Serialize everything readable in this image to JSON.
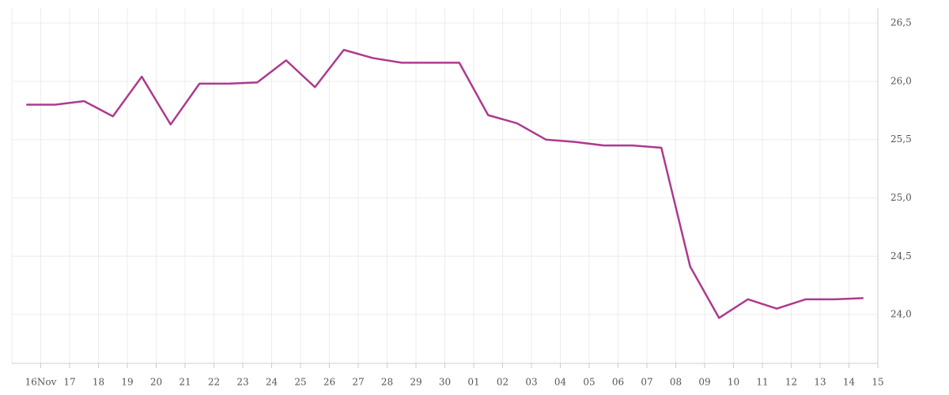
{
  "chart_data": {
    "type": "line",
    "categories": [
      "16Nov",
      "17",
      "18",
      "19",
      "20",
      "21",
      "22",
      "23",
      "24",
      "25",
      "26",
      "27",
      "28",
      "29",
      "30",
      "01",
      "02",
      "03",
      "04",
      "05",
      "06",
      "07",
      "08",
      "09",
      "10",
      "11",
      "12",
      "13",
      "14",
      "15"
    ],
    "series": [
      {
        "color": "#ad3a8e",
        "values": [
          25.8,
          25.8,
          25.83,
          25.7,
          26.04,
          25.63,
          25.98,
          25.98,
          25.99,
          26.18,
          25.95,
          26.27,
          26.2,
          26.16,
          26.16,
          26.16,
          25.71,
          25.64,
          25.5,
          25.48,
          25.45,
          25.45,
          25.43,
          24.41,
          23.97,
          24.13,
          24.05,
          24.13,
          24.13,
          24.14
        ]
      }
    ],
    "ylim": [
      23.58,
      26.63
    ],
    "yticks": [
      {
        "value": 24,
        "label": "24,0"
      },
      {
        "value": 24.5,
        "label": "24,5"
      },
      {
        "value": 25,
        "label": "25,0"
      },
      {
        "value": 25.5,
        "label": "25,5"
      },
      {
        "value": 26,
        "label": "26,0"
      },
      {
        "value": 26.5,
        "label": "26,5"
      }
    ],
    "grid": true
  }
}
